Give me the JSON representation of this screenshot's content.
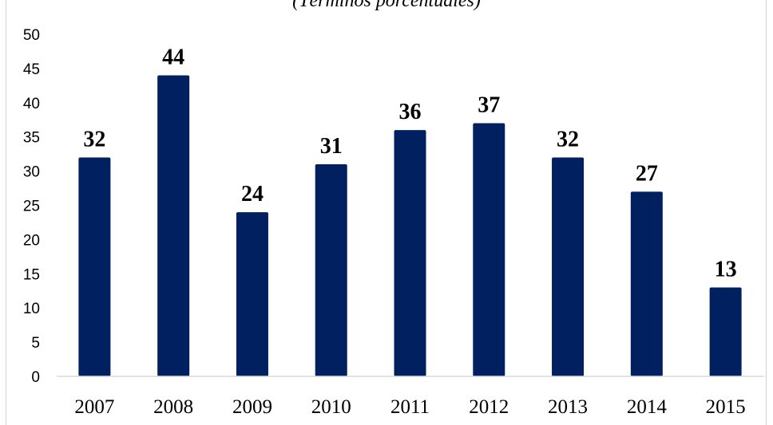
{
  "chart_data": {
    "type": "bar",
    "title": "",
    "subtitle": "(Términos porcentuales)",
    "xlabel": "",
    "ylabel": "",
    "categories": [
      "2007",
      "2008",
      "2009",
      "2010",
      "2011",
      "2012",
      "2013",
      "2014",
      "2015"
    ],
    "values": [
      32,
      44,
      24,
      31,
      36,
      37,
      32,
      27,
      13
    ],
    "data_labels": [
      "32",
      "44",
      "24",
      "31",
      "36",
      "37",
      "32",
      "27",
      "13"
    ],
    "ylim": [
      0,
      50
    ],
    "yticks": [
      "0",
      "5",
      "10",
      "15",
      "20",
      "25",
      "30",
      "35",
      "40",
      "45",
      "50"
    ],
    "grid": false,
    "legend": "none",
    "bar_color": "#002060"
  }
}
